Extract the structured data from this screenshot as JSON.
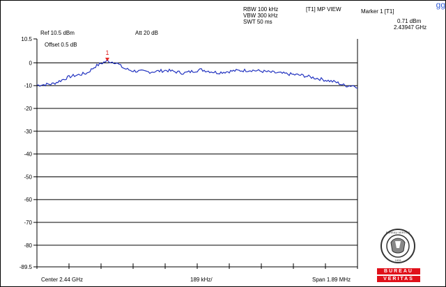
{
  "corner_text": "gg",
  "header": {
    "rbw": "RBW 100 kHz",
    "vbw": "VBW 300 kHz",
    "swt": "SWT 50 ms",
    "trace_mode": "[T1] MP VIEW",
    "marker_title": "Marker 1 [T1]",
    "marker_level": "0.71 dBm",
    "marker_freq": "2.43947 GHz",
    "ref": "Ref 10.5 dBm",
    "att": "Att 20 dB",
    "offset": "Offset 0.5 dB"
  },
  "footer": {
    "center": "Center 2.44 GHz",
    "div": "189 kHz/",
    "span": "Span 1.89 MHz"
  },
  "logo": {
    "seal_text": "BUREAU VERITAS",
    "year": "1828",
    "bar_top": "BUREAU",
    "bar_bottom": "VERITAS"
  },
  "colors": {
    "trace": "#2233c0",
    "marker": "#e02020",
    "grid": "#000000",
    "brand_red": "#e0101a"
  },
  "chart_data": {
    "type": "line",
    "title": "",
    "xlabel": "",
    "ylabel": "",
    "xlim": [
      2.439055,
      2.440945
    ],
    "x_unit": "GHz",
    "ylim": [
      -89.5,
      10.5
    ],
    "y_unit": "dBm",
    "yticks": [
      "10.5",
      "0",
      "-10",
      "-20",
      "-30",
      "-40",
      "-50",
      "-60",
      "-70",
      "-80",
      "-89.5"
    ],
    "grid": true,
    "marker": {
      "label": "1",
      "x": 2.43947,
      "y": 0.71
    },
    "series": [
      {
        "x": [
          2.439055,
          2.43915,
          2.43925,
          2.43935,
          2.4394,
          2.43945,
          2.43947,
          2.43952,
          2.43957,
          2.43962,
          2.43972,
          2.43982,
          2.43992,
          2.44002,
          2.44012,
          2.44022,
          2.44032,
          2.44042,
          2.44052,
          2.44062,
          2.44072,
          2.44082,
          2.44087,
          2.44092,
          2.440945
        ],
        "y": [
          -9.8,
          -9.2,
          -6.0,
          -4.5,
          -1.5,
          0.3,
          0.71,
          0.2,
          -2.5,
          -3.5,
          -4.0,
          -3.3,
          -4.5,
          -3.0,
          -4.3,
          -3.5,
          -3.2,
          -4.0,
          -4.8,
          -5.5,
          -7.0,
          -8.5,
          -10.0,
          -10.0,
          -10.5
        ]
      }
    ]
  }
}
